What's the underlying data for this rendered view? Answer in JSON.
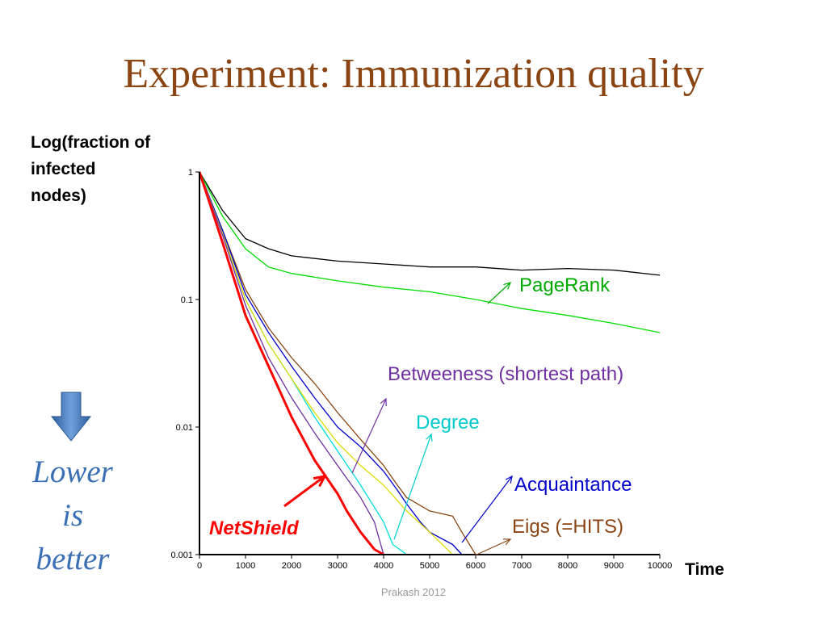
{
  "slide": {
    "title": "Experiment: Immunization quality",
    "footer": "Prakash 2012",
    "hint_lines": [
      "Lower",
      "is",
      "better"
    ]
  },
  "chart_data": {
    "type": "line",
    "title": "Experiment: Immunization quality",
    "ylabel_lines": [
      "Log(fraction of",
      "infected",
      "nodes)"
    ],
    "xlabel": "Time",
    "xscale": "linear",
    "yscale": "log",
    "xlim": [
      0,
      10000
    ],
    "ylim": [
      0.001,
      1
    ],
    "x_ticks": [
      0,
      1000,
      2000,
      3000,
      4000,
      5000,
      6000,
      7000,
      8000,
      9000,
      10000
    ],
    "x_tick_labels": [
      "0",
      "1000",
      "2000",
      "3000",
      "4000",
      "5000",
      "6000",
      "7000",
      "8000",
      "9000",
      "10000"
    ],
    "y_ticks": [
      1,
      0.1,
      0.01,
      0.001
    ],
    "y_tick_labels": [
      "1",
      "0.1",
      "0.01",
      "0.001"
    ],
    "grid": false,
    "legend": "inline labels with arrows",
    "series": [
      {
        "key": "pagerank-black",
        "color": "#000000",
        "x": [
          0,
          500,
          1000,
          1500,
          2000,
          3000,
          4000,
          5000,
          6000,
          7000,
          8000,
          9000,
          10000
        ],
        "y": [
          1,
          0.5,
          0.3,
          0.25,
          0.22,
          0.2,
          0.19,
          0.18,
          0.18,
          0.17,
          0.175,
          0.17,
          0.155
        ]
      },
      {
        "key": "pagerank-green",
        "color": "#00DD00",
        "x": [
          0,
          500,
          1000,
          1500,
          2000,
          3000,
          4000,
          5000,
          6000,
          7000,
          8000,
          9000,
          10000
        ],
        "y": [
          1,
          0.45,
          0.25,
          0.18,
          0.16,
          0.14,
          0.125,
          0.115,
          0.1,
          0.085,
          0.075,
          0.065,
          0.055
        ]
      },
      {
        "key": "eigs",
        "color": "#8B4513",
        "x": [
          0,
          500,
          1000,
          1500,
          2000,
          2500,
          3000,
          3500,
          4000,
          4300,
          4500,
          5000,
          5500,
          5700,
          6000
        ],
        "y": [
          1,
          0.35,
          0.12,
          0.06,
          0.035,
          0.022,
          0.013,
          0.008,
          0.005,
          0.0035,
          0.0028,
          0.0022,
          0.002,
          0.0015,
          0.001
        ]
      },
      {
        "key": "acquaintance",
        "color": "#0000CC",
        "x": [
          0,
          500,
          1000,
          1500,
          2000,
          2500,
          3000,
          3500,
          4000,
          4300,
          4500,
          4800,
          5000,
          5500,
          5700
        ],
        "y": [
          1,
          0.35,
          0.11,
          0.055,
          0.03,
          0.017,
          0.01,
          0.007,
          0.0045,
          0.0032,
          0.0025,
          0.0018,
          0.0015,
          0.0012,
          0.001
        ]
      },
      {
        "key": "degree",
        "color": "#00DDDD",
        "x": [
          0,
          500,
          1000,
          1500,
          2000,
          2500,
          3000,
          3500,
          4000,
          4200,
          4500
        ],
        "y": [
          1,
          0.33,
          0.1,
          0.045,
          0.024,
          0.012,
          0.0065,
          0.0035,
          0.0018,
          0.0012,
          0.001
        ]
      },
      {
        "key": "yellow",
        "color": "#DDDD00",
        "x": [
          0,
          500,
          1000,
          1500,
          2000,
          2500,
          3000,
          3500,
          4000,
          4500,
          5000,
          5500
        ],
        "y": [
          1,
          0.33,
          0.1,
          0.045,
          0.024,
          0.013,
          0.0075,
          0.005,
          0.0035,
          0.0022,
          0.0015,
          0.001
        ]
      },
      {
        "key": "betweenness",
        "color": "#7030A0",
        "x": [
          0,
          500,
          1000,
          1500,
          2000,
          2500,
          3000,
          3500,
          3800,
          4000
        ],
        "y": [
          1,
          0.32,
          0.09,
          0.035,
          0.017,
          0.009,
          0.005,
          0.0028,
          0.0018,
          0.001
        ]
      },
      {
        "key": "netshield",
        "color": "#FF0000",
        "x": [
          0,
          500,
          1000,
          1500,
          2000,
          2500,
          3000,
          3200,
          3500,
          3800,
          4000
        ],
        "y": [
          1,
          0.28,
          0.075,
          0.03,
          0.012,
          0.0055,
          0.003,
          0.0022,
          0.0015,
          0.0011,
          0.001
        ]
      }
    ],
    "annotations": [
      {
        "text": "PageRank",
        "color": "#00AA00",
        "italic": false,
        "bold": false
      },
      {
        "text": "Betweeness (shortest path)",
        "color": "#7030A0",
        "italic": false,
        "bold": false
      },
      {
        "text": "Degree",
        "color": "#00CCCC",
        "italic": false,
        "bold": false
      },
      {
        "text": "Acquaintance",
        "color": "#0000CC",
        "italic": false,
        "bold": false
      },
      {
        "text": "Eigs (=HITS)",
        "color": "#8B4513",
        "italic": false,
        "bold": false
      },
      {
        "text": "NetShield",
        "color": "#FF0000",
        "italic": true,
        "bold": true
      }
    ]
  }
}
